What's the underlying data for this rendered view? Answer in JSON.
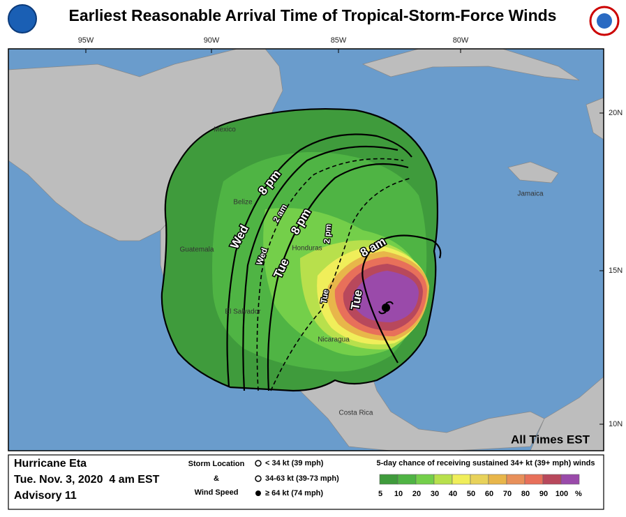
{
  "header": {
    "title": "Earliest Reasonable Arrival Time of Tropical-Storm-Force Winds"
  },
  "map": {
    "longitude_labels": [
      "95W",
      "90W",
      "85W",
      "80W"
    ],
    "latitude_labels": [
      "20N",
      "15N",
      "10N"
    ],
    "places": [
      "Mexico",
      "Belize",
      "Guatemala",
      "Honduras",
      "El Salvador",
      "Nicaragua",
      "Costa Rica",
      "Jamaica"
    ],
    "arrival_labels": [
      [
        "Wed",
        "8 pm"
      ],
      [
        "Wed",
        "2 am"
      ],
      [
        "Tue",
        "8 pm"
      ],
      [
        "Tue",
        "2 pm"
      ],
      [
        "Tue",
        "8 am"
      ]
    ],
    "times_note": "All Times EST"
  },
  "footer": {
    "storm": "Hurricane Eta",
    "date": "Tue. Nov. 3, 2020  4 am EST",
    "advisory": "Advisory 11",
    "storm_location": "Storm Location",
    "amp": "&",
    "wind_speed": "Wind Speed",
    "wind_classes": [
      "< 34 kt (39 mph)",
      "34-63 kt (39-73 mph)",
      "≥ 64 kt (74 mph)"
    ],
    "probability_title": "5-day chance of receiving sustained 34+ kt (39+ mph) winds",
    "probability_scale": [
      "5",
      "10",
      "20",
      "30",
      "40",
      "50",
      "60",
      "70",
      "80",
      "90",
      "100",
      "%"
    ]
  }
}
